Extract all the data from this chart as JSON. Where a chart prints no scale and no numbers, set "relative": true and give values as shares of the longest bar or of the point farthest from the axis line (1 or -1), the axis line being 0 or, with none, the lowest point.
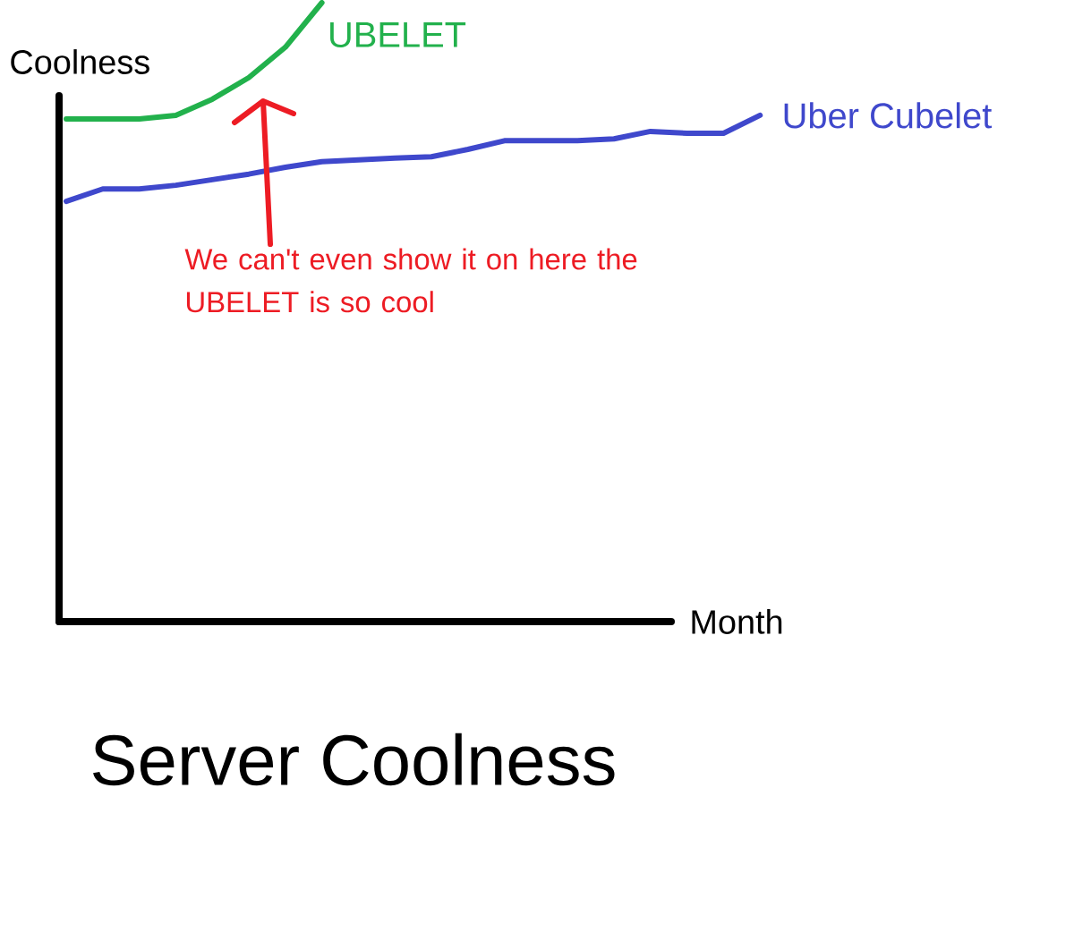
{
  "chart_data": {
    "type": "line",
    "relative": true,
    "title": "Server Coolness",
    "xlabel": "Month",
    "ylabel": "Coolness",
    "categories": [
      null,
      null,
      null,
      null,
      null,
      null,
      null,
      null,
      null,
      null,
      null,
      null,
      null,
      null,
      null,
      null,
      null,
      null,
      null,
      null
    ],
    "series": [
      {
        "name": "UBELET",
        "color": "#22b14c",
        "values": [
          0.812,
          0.812,
          0.812,
          0.818,
          0.844,
          0.879,
          0.928,
          1,
          null,
          null,
          null,
          null,
          null,
          null,
          null,
          null,
          null,
          null,
          null,
          null
        ]
      },
      {
        "name": "Uber Cubelet",
        "color": "#3f48cc",
        "values": [
          0.679,
          0.699,
          0.699,
          0.705,
          0.714,
          0.723,
          0.734,
          0.743,
          0.746,
          0.749,
          0.751,
          0.763,
          0.777,
          0.777,
          0.777,
          0.78,
          0.792,
          0.789,
          0.789,
          0.818
        ]
      }
    ],
    "annotations": [
      "We can't even show it on here the UBELET is so cool"
    ]
  }
}
